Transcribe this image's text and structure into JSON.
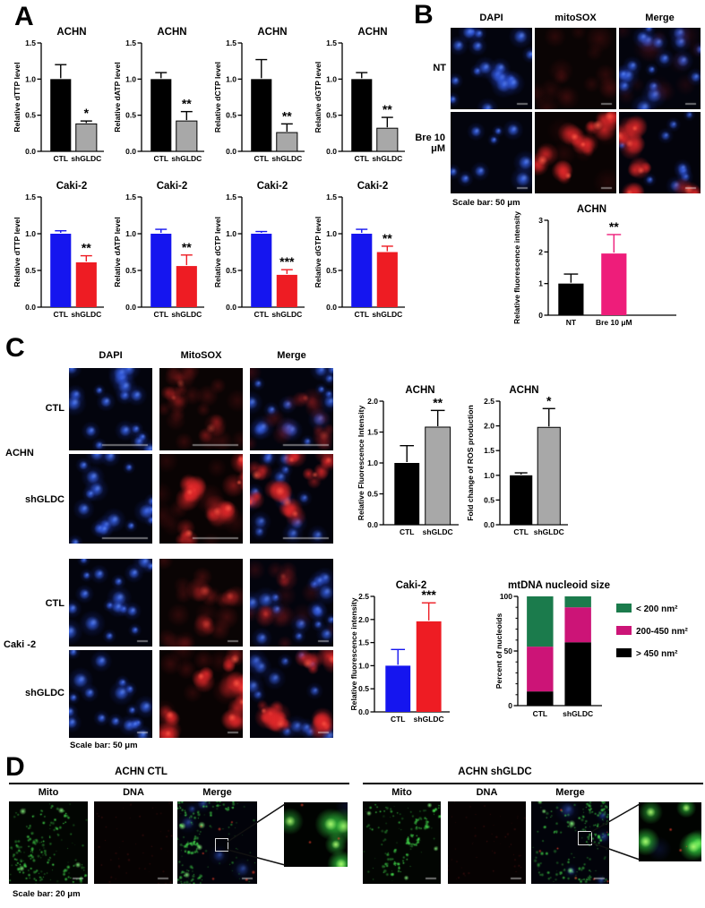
{
  "panel_labels": {
    "a": "A",
    "b": "B",
    "c": "C",
    "d": "D"
  },
  "panel_b": {
    "grid": {
      "columns": [
        "DAPI",
        "mitoSOX",
        "Merge"
      ],
      "rows": [
        "NT",
        "Bre 10 μM"
      ]
    },
    "scale_bar": "Scale bar: 50 μm"
  },
  "panel_c": {
    "top_grid": {
      "columns": [
        "DAPI",
        "MitoSOX",
        "Merge"
      ],
      "rows": [
        "CTL",
        "shGLDC"
      ],
      "group": "ACHN"
    },
    "bottom_grid": {
      "rows": [
        "CTL",
        "shGLDC"
      ],
      "group": "Caki -2"
    },
    "scale_bar": "Scale bar: 50 μm"
  },
  "panel_d": {
    "left": {
      "title": "ACHN CTL",
      "columns": [
        "Mito",
        "DNA",
        "Merge"
      ]
    },
    "right": {
      "title": "ACHN shGLDC",
      "columns": [
        "Mito",
        "DNA",
        "Merge"
      ]
    },
    "scale_bar": "Scale bar: 20 μm"
  },
  "chart_data": [
    {
      "id": "a1",
      "type": "bar",
      "title": "ACHN",
      "ylabel": "Relative dTTP level",
      "ylim": [
        0,
        1.5
      ],
      "yticks": [
        "0.0",
        "0.5",
        "1.0",
        "1.5"
      ],
      "categories": [
        "CTL",
        "shGLDC"
      ],
      "values": [
        1.0,
        0.38
      ],
      "errors": [
        0.2,
        0.04
      ],
      "colors": [
        "#000000",
        "#a8a8a8"
      ],
      "sig": "*"
    },
    {
      "id": "a2",
      "type": "bar",
      "title": "ACHN",
      "ylabel": "Relative dATP level",
      "ylim": [
        0,
        1.5
      ],
      "yticks": [
        "0.0",
        "0.5",
        "1.0",
        "1.5"
      ],
      "categories": [
        "CTL",
        "shGLDC"
      ],
      "values": [
        1.0,
        0.42
      ],
      "errors": [
        0.09,
        0.13
      ],
      "colors": [
        "#000000",
        "#a8a8a8"
      ],
      "sig": "**"
    },
    {
      "id": "a3",
      "type": "bar",
      "title": "ACHN",
      "ylabel": "Relative dCTP level",
      "ylim": [
        0,
        1.5
      ],
      "yticks": [
        "0.0",
        "0.5",
        "1.0",
        "1.5"
      ],
      "categories": [
        "CTL",
        "shGLDC"
      ],
      "values": [
        1.0,
        0.26
      ],
      "errors": [
        0.27,
        0.12
      ],
      "colors": [
        "#000000",
        "#a8a8a8"
      ],
      "sig": "**"
    },
    {
      "id": "a4",
      "type": "bar",
      "title": "ACHN",
      "ylabel": "Relative dGTP level",
      "ylim": [
        0,
        1.5
      ],
      "yticks": [
        "0.0",
        "0.5",
        "1.0",
        "1.5"
      ],
      "categories": [
        "CTL",
        "shGLDC"
      ],
      "values": [
        1.0,
        0.32
      ],
      "errors": [
        0.09,
        0.15
      ],
      "colors": [
        "#000000",
        "#a8a8a8"
      ],
      "sig": "**"
    },
    {
      "id": "a5",
      "type": "bar",
      "title": "Caki-2",
      "ylabel": "Relative dTTP level",
      "ylim": [
        0,
        1.5
      ],
      "yticks": [
        "0.0",
        "0.5",
        "1.0",
        "1.5"
      ],
      "categories": [
        "CTL",
        "shGLDC"
      ],
      "values": [
        1.0,
        0.61
      ],
      "errors": [
        0.04,
        0.09
      ],
      "colors": [
        "#1515ef",
        "#ee1c23"
      ],
      "sig": "**"
    },
    {
      "id": "a6",
      "type": "bar",
      "title": "Caki-2",
      "ylabel": "Relative dATP level",
      "ylim": [
        0,
        1.5
      ],
      "yticks": [
        "0.0",
        "0.5",
        "1.0",
        "1.5"
      ],
      "categories": [
        "CTL",
        "shGLDC"
      ],
      "values": [
        1.0,
        0.56
      ],
      "errors": [
        0.06,
        0.15
      ],
      "colors": [
        "#1515ef",
        "#ee1c23"
      ],
      "sig": "**"
    },
    {
      "id": "a7",
      "type": "bar",
      "title": "Caki-2",
      "ylabel": "Relative dCTP level",
      "ylim": [
        0,
        1.5
      ],
      "yticks": [
        "0.0",
        "0.5",
        "1.0",
        "1.5"
      ],
      "categories": [
        "CTL",
        "shGLDC"
      ],
      "values": [
        1.0,
        0.44
      ],
      "errors": [
        0.03,
        0.07
      ],
      "colors": [
        "#1515ef",
        "#ee1c23"
      ],
      "sig": "***"
    },
    {
      "id": "a8",
      "type": "bar",
      "title": "Caki-2",
      "ylabel": "Relative dGTP level",
      "ylim": [
        0,
        1.5
      ],
      "yticks": [
        "0.0",
        "0.5",
        "1.0",
        "1.5"
      ],
      "categories": [
        "CTL",
        "shGLDC"
      ],
      "values": [
        1.0,
        0.75
      ],
      "errors": [
        0.06,
        0.08
      ],
      "colors": [
        "#1515ef",
        "#ee1c23"
      ],
      "sig": "**"
    },
    {
      "id": "b1",
      "type": "bar",
      "title": "ACHN",
      "ylabel": "Relative fluorescence intensity",
      "ylim": [
        0,
        3
      ],
      "yticks": [
        "0",
        "1",
        "2",
        "3"
      ],
      "categories": [
        "NT",
        "Bre 10 μM"
      ],
      "values": [
        1.0,
        1.95
      ],
      "errors": [
        0.3,
        0.6
      ],
      "colors": [
        "#000000",
        "#ee1d7a"
      ],
      "sig": "**"
    },
    {
      "id": "c1",
      "type": "bar",
      "title": "ACHN",
      "ylabel": "Relative Fluorescence Intensity",
      "ylim": [
        0,
        2.0
      ],
      "yticks": [
        "0.0",
        "0.5",
        "1.0",
        "1.5",
        "2.0"
      ],
      "categories": [
        "CTL",
        "shGLDC"
      ],
      "values": [
        1.0,
        1.58
      ],
      "errors": [
        0.28,
        0.27
      ],
      "colors": [
        "#000000",
        "#a8a8a8"
      ],
      "sig": "**"
    },
    {
      "id": "c2",
      "type": "bar",
      "title": "ACHN",
      "ylabel": "Fold change of ROS production",
      "ylim": [
        0,
        2.5
      ],
      "yticks": [
        "0.0",
        "0.5",
        "1.0",
        "1.5",
        "2.0",
        "2.5"
      ],
      "categories": [
        "CTL",
        "shGLDC"
      ],
      "values": [
        1.0,
        1.97
      ],
      "errors": [
        0.05,
        0.38
      ],
      "colors": [
        "#000000",
        "#a8a8a8"
      ],
      "sig": "*"
    },
    {
      "id": "c3",
      "type": "bar",
      "title": "Caki-2",
      "ylabel": "Relative fluorescence intensity",
      "ylim": [
        0,
        2.5
      ],
      "yticks": [
        "0.0",
        "0.5",
        "1.0",
        "1.5",
        "2.0",
        "2.5"
      ],
      "categories": [
        "CTL",
        "shGLDC"
      ],
      "values": [
        1.0,
        1.96
      ],
      "errors": [
        0.35,
        0.4
      ],
      "colors": [
        "#1515ef",
        "#ee1c23"
      ],
      "sig": "***"
    },
    {
      "id": "c4",
      "type": "stacked",
      "title": "mtDNA nucleoid size",
      "ylabel": "Percent of nucleoids",
      "ylim": [
        0,
        100
      ],
      "yticks": [
        "0",
        "50",
        "100"
      ],
      "minor_every": 10,
      "categories": [
        "CTL",
        "shGLDC"
      ],
      "series": [
        {
          "name": "< 200 nm²",
          "color": "#1b7b4c",
          "values": [
            46,
            10
          ]
        },
        {
          "name": "200-450 nm²",
          "color": "#cc1477",
          "values": [
            41,
            32
          ]
        },
        {
          "name": "> 450 nm²",
          "color": "#000000",
          "values": [
            13,
            58
          ]
        }
      ],
      "legend_position": "right"
    }
  ]
}
